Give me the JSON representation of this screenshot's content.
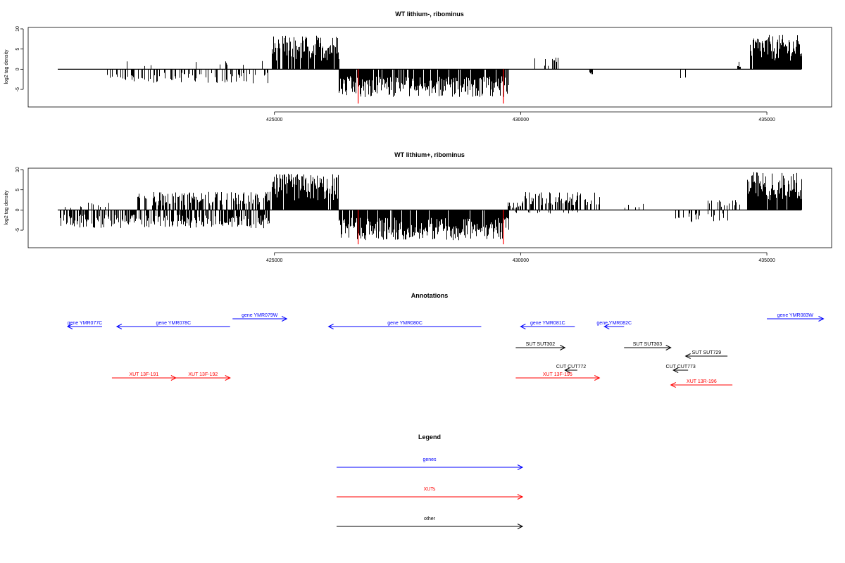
{
  "colors": {
    "genes": "#0000ff",
    "xuts": "#ff0000",
    "other": "#000000",
    "highlight": "#ff0000"
  },
  "chart_data": [
    {
      "type": "bar",
      "title": "WT lithium-, ribominus",
      "ylabel": "log2 tag density",
      "xlim": [
        420000,
        436200
      ],
      "ylim": [
        -9,
        10
      ],
      "xticks": [
        425000,
        430000,
        435000
      ],
      "yticks": [
        -5,
        0,
        5,
        10
      ],
      "highlight_x": [
        426700,
        429650
      ],
      "highlight_values": [
        -8.5,
        -8.5
      ],
      "segments": [
        {
          "start": 421000,
          "end": 421200,
          "sign": 1,
          "amp": 1.0,
          "density": 0.03
        },
        {
          "start": 421600,
          "end": 424950,
          "sign": -1,
          "amp": 3.5,
          "density": 0.35
        },
        {
          "start": 421600,
          "end": 424950,
          "sign": 1,
          "amp": 2.2,
          "density": 0.03
        },
        {
          "start": 424950,
          "end": 426300,
          "sign": 1,
          "amp": 8.5,
          "density": 0.9
        },
        {
          "start": 426300,
          "end": 429750,
          "sign": -1,
          "amp": 7.0,
          "density": 0.9
        },
        {
          "start": 430150,
          "end": 430850,
          "sign": 1,
          "amp": 3.0,
          "density": 0.12
        },
        {
          "start": 431400,
          "end": 431450,
          "sign": -1,
          "amp": 2.0,
          "density": 1.0
        },
        {
          "start": 433200,
          "end": 434100,
          "sign": -1,
          "amp": 2.5,
          "density": 0.08
        },
        {
          "start": 434400,
          "end": 434450,
          "sign": 1,
          "amp": 2.0,
          "density": 1.0
        },
        {
          "start": 434650,
          "end": 435700,
          "sign": 1,
          "amp": 8.5,
          "density": 0.95
        }
      ]
    },
    {
      "type": "bar",
      "title": "WT lithium+, ribominus",
      "ylabel": "log2 tag density",
      "xlim": [
        420000,
        436200
      ],
      "ylim": [
        -9,
        10
      ],
      "xticks": [
        425000,
        430000,
        435000
      ],
      "yticks": [
        -5,
        0,
        5,
        10
      ],
      "highlight_x": [
        426700,
        429650
      ],
      "highlight_values": [
        -8.5,
        -8.5
      ],
      "segments": [
        {
          "start": 420600,
          "end": 421900,
          "sign": 1,
          "amp": 2.0,
          "density": 0.12
        },
        {
          "start": 420600,
          "end": 424900,
          "sign": -1,
          "amp": 4.5,
          "density": 0.6
        },
        {
          "start": 422200,
          "end": 424900,
          "sign": 1,
          "amp": 4.5,
          "density": 0.6
        },
        {
          "start": 424950,
          "end": 426300,
          "sign": 1,
          "amp": 9.0,
          "density": 0.95
        },
        {
          "start": 426300,
          "end": 429750,
          "sign": -1,
          "amp": 7.5,
          "density": 0.95
        },
        {
          "start": 429700,
          "end": 430000,
          "sign": 1,
          "amp": 2.0,
          "density": 0.3
        },
        {
          "start": 430000,
          "end": 431600,
          "sign": 1,
          "amp": 4.5,
          "density": 0.55
        },
        {
          "start": 429750,
          "end": 431800,
          "sign": -1,
          "amp": 1.0,
          "density": 0.1
        },
        {
          "start": 432000,
          "end": 432600,
          "sign": 1,
          "amp": 1.5,
          "density": 0.08
        },
        {
          "start": 433100,
          "end": 434200,
          "sign": -1,
          "amp": 3.0,
          "density": 0.25
        },
        {
          "start": 433800,
          "end": 434600,
          "sign": 1,
          "amp": 2.5,
          "density": 0.3
        },
        {
          "start": 434600,
          "end": 435700,
          "sign": 1,
          "amp": 9.5,
          "density": 0.95
        }
      ]
    }
  ],
  "annotations": {
    "title": "Annotations",
    "xlim": [
      420000,
      436200
    ],
    "items": [
      {
        "label": "gene YMR077C",
        "start": 420800,
        "end": 421500,
        "dir": "left",
        "row": 0,
        "kind": "genes"
      },
      {
        "label": "gene YMR078C",
        "start": 421800,
        "end": 424100,
        "dir": "left",
        "row": 0,
        "kind": "genes"
      },
      {
        "label": "gene YMR079W",
        "start": 424150,
        "end": 425250,
        "dir": "right",
        "row": -1,
        "kind": "genes"
      },
      {
        "label": "gene YMR080C",
        "start": 426100,
        "end": 429200,
        "dir": "left",
        "row": 0,
        "kind": "genes"
      },
      {
        "label": "gene YMR081C",
        "start": 430000,
        "end": 431100,
        "dir": "left",
        "row": 0,
        "kind": "genes"
      },
      {
        "label": "gene YMR082C",
        "start": 431700,
        "end": 432100,
        "dir": "left",
        "row": 0,
        "kind": "genes"
      },
      {
        "label": "gene YMR083W",
        "start": 435000,
        "end": 436150,
        "dir": "right",
        "row": -1,
        "kind": "genes"
      },
      {
        "label": "SUT SUT302",
        "start": 429900,
        "end": 430900,
        "dir": "right",
        "row": 1,
        "kind": "other"
      },
      {
        "label": "SUT SUT303",
        "start": 432100,
        "end": 433050,
        "dir": "right",
        "row": 1,
        "kind": "other"
      },
      {
        "label": "SUT SUT729",
        "start": 433350,
        "end": 434200,
        "dir": "left",
        "row": 2,
        "kind": "other"
      },
      {
        "label": "CUT CUT772",
        "start": 430900,
        "end": 431150,
        "dir": "left",
        "row": 3,
        "kind": "other"
      },
      {
        "label": "CUT CUT773",
        "start": 433100,
        "end": 433400,
        "dir": "left",
        "row": 3,
        "kind": "other"
      },
      {
        "label": "XUT 13F-191",
        "start": 421700,
        "end": 423000,
        "dir": "right",
        "row": 4,
        "kind": "xuts"
      },
      {
        "label": "XUT 13F-192",
        "start": 423000,
        "end": 424100,
        "dir": "right",
        "row": 4,
        "kind": "xuts"
      },
      {
        "label": "XUT 13F-195",
        "start": 429900,
        "end": 431600,
        "dir": "right",
        "row": 4,
        "kind": "xuts"
      },
      {
        "label": "XUT 13R-196",
        "start": 433050,
        "end": 434300,
        "dir": "left",
        "row": 5,
        "kind": "xuts"
      }
    ]
  },
  "legend": {
    "title": "Legend",
    "entries": [
      {
        "label": "genes",
        "kind": "genes"
      },
      {
        "label": "XUTs",
        "kind": "xuts"
      },
      {
        "label": "other",
        "kind": "other"
      }
    ]
  }
}
